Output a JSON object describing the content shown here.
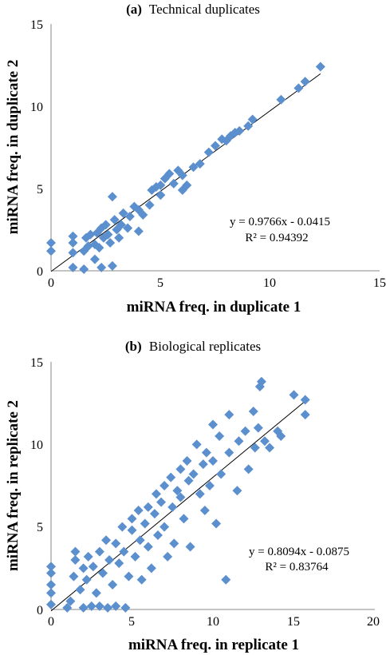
{
  "chart_data": [
    {
      "type": "scatter",
      "panel_label": "(a)",
      "title": "Technical duplicates",
      "xlabel": "miRNA freq. in duplicate 1",
      "ylabel": "miRNA freq. in duplicate 2",
      "xlim": [
        0,
        15
      ],
      "ylim": [
        0,
        15
      ],
      "xticks": [
        "0",
        "5",
        "10",
        "15"
      ],
      "yticks": [
        "0",
        "5",
        "10",
        "15"
      ],
      "grid": false,
      "legend": "none",
      "marker_color": "#5b8fcd",
      "trendline": {
        "slope": 0.9766,
        "intercept": -0.0415
      },
      "equation_text": "y = 0.9766x - 0.0415",
      "r2_text": "R² = 0.94392",
      "points": [
        [
          0,
          1.2
        ],
        [
          0,
          1.7
        ],
        [
          1,
          0.2
        ],
        [
          1,
          1.1
        ],
        [
          1,
          1.7
        ],
        [
          1,
          2.1
        ],
        [
          1.5,
          0.1
        ],
        [
          1.5,
          1.2
        ],
        [
          1.6,
          2.0
        ],
        [
          1.7,
          1.5
        ],
        [
          1.8,
          2.2
        ],
        [
          2,
          1.6
        ],
        [
          2,
          0.7
        ],
        [
          2.1,
          2.3
        ],
        [
          2.2,
          1.4
        ],
        [
          2.3,
          0.2
        ],
        [
          2.3,
          2.6
        ],
        [
          2.4,
          2.0
        ],
        [
          2.5,
          2.8
        ],
        [
          2.6,
          2.2
        ],
        [
          2.7,
          1.7
        ],
        [
          2.8,
          0.3
        ],
        [
          2.8,
          4.5
        ],
        [
          2.9,
          3.1
        ],
        [
          3,
          2.5
        ],
        [
          3.1,
          2.0
        ],
        [
          3.2,
          2.8
        ],
        [
          3.3,
          3.5
        ],
        [
          3.5,
          2.6
        ],
        [
          3.6,
          3.3
        ],
        [
          3.8,
          3.9
        ],
        [
          4,
          3.7
        ],
        [
          4,
          2.4
        ],
        [
          4.2,
          3.4
        ],
        [
          4.5,
          4.0
        ],
        [
          4.6,
          4.9
        ],
        [
          4.8,
          5.1
        ],
        [
          5,
          4.6
        ],
        [
          5,
          5.2
        ],
        [
          5.2,
          5.6
        ],
        [
          5.4,
          5.9
        ],
        [
          5.6,
          5.3
        ],
        [
          5.8,
          6.1
        ],
        [
          6,
          5.8
        ],
        [
          6,
          4.9
        ],
        [
          6.2,
          5.2
        ],
        [
          6.5,
          6.3
        ],
        [
          6.8,
          6.5
        ],
        [
          7.2,
          7.2
        ],
        [
          7.5,
          7.6
        ],
        [
          7.8,
          8.0
        ],
        [
          8,
          7.9
        ],
        [
          8.2,
          8.2
        ],
        [
          8.4,
          8.4
        ],
        [
          8.6,
          8.5
        ],
        [
          9,
          8.8
        ],
        [
          9.2,
          9.2
        ],
        [
          10.5,
          10.4
        ],
        [
          11.3,
          11.1
        ],
        [
          11.6,
          11.5
        ],
        [
          12.3,
          12.4
        ]
      ]
    },
    {
      "type": "scatter",
      "panel_label": "(b)",
      "title": "Biological replicates",
      "xlabel": "miRNA freq. in replicate 1",
      "ylabel": "miRNA freq. in replicate 2",
      "xlim": [
        0,
        20
      ],
      "ylim": [
        0,
        15
      ],
      "xticks": [
        "0",
        "5",
        "10",
        "15",
        "20"
      ],
      "yticks": [
        "0",
        "5",
        "10",
        "15"
      ],
      "grid": false,
      "legend": "none",
      "marker_color": "#5b8fcd",
      "trendline": {
        "slope": 0.8094,
        "intercept": -0.0875
      },
      "equation_text": "y = 0.8094x - 0.0875",
      "r2_text": "R² = 0.83764",
      "points": [
        [
          0,
          0.3
        ],
        [
          0,
          1.0
        ],
        [
          0,
          1.5
        ],
        [
          0,
          2.2
        ],
        [
          0,
          2.6
        ],
        [
          1.0,
          0.1
        ],
        [
          1.2,
          0.5
        ],
        [
          1.4,
          2.0
        ],
        [
          1.5,
          3.0
        ],
        [
          1.5,
          3.5
        ],
        [
          1.8,
          1.2
        ],
        [
          2,
          0.1
        ],
        [
          2,
          2.5
        ],
        [
          2.2,
          1.8
        ],
        [
          2.3,
          3.2
        ],
        [
          2.5,
          0.2
        ],
        [
          2.6,
          2.6
        ],
        [
          2.8,
          1.0
        ],
        [
          3,
          0.2
        ],
        [
          3,
          3.5
        ],
        [
          3.2,
          2.2
        ],
        [
          3.4,
          4.2
        ],
        [
          3.5,
          0.1
        ],
        [
          3.6,
          3.0
        ],
        [
          3.8,
          1.5
        ],
        [
          4,
          0.2
        ],
        [
          4,
          4.0
        ],
        [
          4.2,
          2.8
        ],
        [
          4.4,
          5.0
        ],
        [
          4.5,
          3.5
        ],
        [
          4.6,
          0.1
        ],
        [
          4.8,
          2.0
        ],
        [
          5,
          4.8
        ],
        [
          5,
          5.5
        ],
        [
          5.2,
          3.2
        ],
        [
          5.4,
          6.0
        ],
        [
          5.5,
          4.2
        ],
        [
          5.6,
          1.8
        ],
        [
          5.8,
          5.2
        ],
        [
          6,
          6.2
        ],
        [
          6,
          3.8
        ],
        [
          6.2,
          2.5
        ],
        [
          6.4,
          5.8
        ],
        [
          6.5,
          7.0
        ],
        [
          6.6,
          4.5
        ],
        [
          6.8,
          6.5
        ],
        [
          7,
          7.5
        ],
        [
          7,
          5.0
        ],
        [
          7.2,
          3.2
        ],
        [
          7.4,
          8.0
        ],
        [
          7.5,
          6.2
        ],
        [
          7.6,
          4.0
        ],
        [
          7.8,
          7.2
        ],
        [
          8,
          8.5
        ],
        [
          8,
          6.8
        ],
        [
          8.2,
          5.5
        ],
        [
          8.4,
          9.0
        ],
        [
          8.5,
          7.8
        ],
        [
          8.6,
          3.8
        ],
        [
          8.8,
          8.2
        ],
        [
          9,
          10.0
        ],
        [
          9.2,
          7.0
        ],
        [
          9.4,
          8.8
        ],
        [
          9.5,
          6.0
        ],
        [
          9.6,
          9.5
        ],
        [
          9.8,
          7.5
        ],
        [
          10,
          11.2
        ],
        [
          10,
          9.0
        ],
        [
          10.2,
          5.2
        ],
        [
          10.4,
          10.5
        ],
        [
          10.5,
          8.2
        ],
        [
          10.8,
          1.8
        ],
        [
          11,
          11.8
        ],
        [
          11,
          9.5
        ],
        [
          11.5,
          7.2
        ],
        [
          11.6,
          10.2
        ],
        [
          12,
          10.8
        ],
        [
          12.2,
          8.5
        ],
        [
          12.5,
          12.0
        ],
        [
          12.6,
          9.8
        ],
        [
          12.8,
          11.0
        ],
        [
          12.9,
          13.5
        ],
        [
          13,
          13.8
        ],
        [
          13.2,
          10.2
        ],
        [
          13.5,
          9.8
        ],
        [
          14,
          10.8
        ],
        [
          14.2,
          10.5
        ],
        [
          15,
          13.0
        ],
        [
          15.7,
          12.7
        ],
        [
          15.7,
          11.8
        ]
      ]
    }
  ]
}
